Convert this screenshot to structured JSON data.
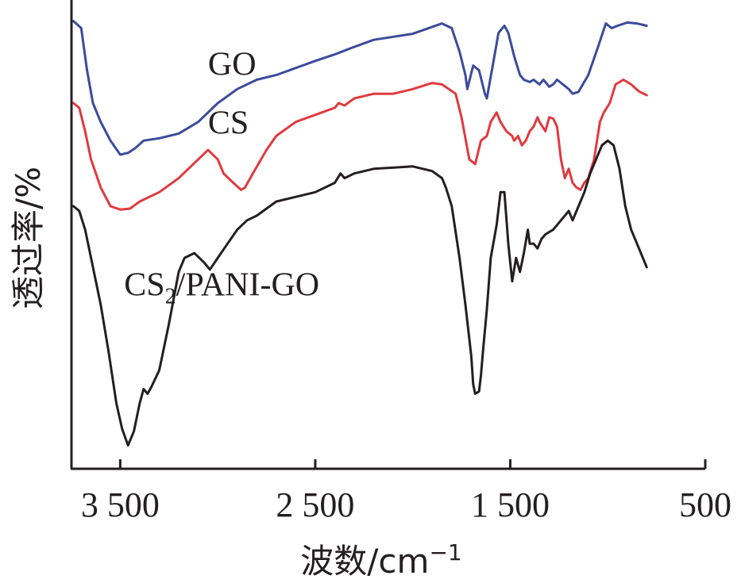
{
  "chart_data": {
    "type": "line",
    "xlabel": "波数/cm",
    "xlabel_sup": "−1",
    "ylabel": "透过率/%",
    "xlim": [
      3750,
      500
    ],
    "x_reversed": true,
    "ylim": [
      0,
      100
    ],
    "y_tick_labels_shown": false,
    "grid": false,
    "x_ticks": [
      {
        "value": 3500,
        "label": "3 500"
      },
      {
        "value": 2500,
        "label": "2 500"
      },
      {
        "value": 1500,
        "label": "1 500"
      },
      {
        "value": 500,
        "label": "500"
      }
    ],
    "series": [
      {
        "name": "GO",
        "color": "#3a4b9c",
        "label_parts": {
          "main": "GO",
          "sub": "",
          "tail": ""
        },
        "label_at": [
          3050,
          84
        ],
        "points": [
          [
            3740,
            95.5
          ],
          [
            3700,
            94
          ],
          [
            3670,
            85
          ],
          [
            3640,
            78
          ],
          [
            3600,
            74
          ],
          [
            3550,
            70
          ],
          [
            3500,
            67
          ],
          [
            3460,
            67.4
          ],
          [
            3420,
            68.5
          ],
          [
            3380,
            70
          ],
          [
            3300,
            70.5
          ],
          [
            3200,
            71.5
          ],
          [
            3100,
            74
          ],
          [
            3000,
            78
          ],
          [
            2900,
            81
          ],
          [
            2800,
            83
          ],
          [
            2700,
            84
          ],
          [
            2600,
            85.5
          ],
          [
            2500,
            87
          ],
          [
            2400,
            88.4
          ],
          [
            2350,
            89.2
          ],
          [
            2300,
            90
          ],
          [
            2200,
            91.5
          ],
          [
            2000,
            92.8
          ],
          [
            1850,
            95
          ],
          [
            1800,
            94
          ],
          [
            1760,
            89
          ],
          [
            1730,
            84
          ],
          [
            1720,
            81
          ],
          [
            1690,
            86
          ],
          [
            1660,
            85
          ],
          [
            1630,
            80
          ],
          [
            1620,
            79
          ],
          [
            1590,
            86
          ],
          [
            1560,
            93
          ],
          [
            1530,
            94.5
          ],
          [
            1510,
            93
          ],
          [
            1480,
            88
          ],
          [
            1450,
            84
          ],
          [
            1430,
            83
          ],
          [
            1400,
            82.5
          ],
          [
            1380,
            83
          ],
          [
            1350,
            82
          ],
          [
            1330,
            83
          ],
          [
            1300,
            81.5
          ],
          [
            1280,
            82
          ],
          [
            1260,
            83
          ],
          [
            1230,
            82
          ],
          [
            1200,
            81
          ],
          [
            1180,
            80
          ],
          [
            1150,
            80.4
          ],
          [
            1100,
            84
          ],
          [
            1050,
            90
          ],
          [
            1010,
            95
          ],
          [
            980,
            94
          ],
          [
            950,
            94.5
          ],
          [
            900,
            95.2
          ],
          [
            850,
            95
          ],
          [
            800,
            94.5
          ]
        ]
      },
      {
        "name": "CS",
        "color": "#e03a3e",
        "label_parts": {
          "main": "CS",
          "sub": "",
          "tail": ""
        },
        "label_at": [
          3050,
          71.5
        ],
        "points": [
          [
            3740,
            78
          ],
          [
            3710,
            77
          ],
          [
            3680,
            72
          ],
          [
            3650,
            66
          ],
          [
            3600,
            60
          ],
          [
            3550,
            56
          ],
          [
            3500,
            55.3
          ],
          [
            3450,
            55.5
          ],
          [
            3400,
            57
          ],
          [
            3300,
            59
          ],
          [
            3200,
            62
          ],
          [
            3100,
            66
          ],
          [
            3050,
            68
          ],
          [
            3000,
            66
          ],
          [
            2970,
            63
          ],
          [
            2920,
            61
          ],
          [
            2880,
            59.5
          ],
          [
            2860,
            60
          ],
          [
            2820,
            63
          ],
          [
            2750,
            68
          ],
          [
            2700,
            71
          ],
          [
            2600,
            74
          ],
          [
            2500,
            75.5
          ],
          [
            2400,
            77
          ],
          [
            2380,
            78
          ],
          [
            2350,
            77.5
          ],
          [
            2300,
            79
          ],
          [
            2200,
            80
          ],
          [
            2100,
            80
          ],
          [
            2000,
            81
          ],
          [
            1900,
            82.3
          ],
          [
            1850,
            82
          ],
          [
            1780,
            80
          ],
          [
            1750,
            75
          ],
          [
            1710,
            66
          ],
          [
            1680,
            65
          ],
          [
            1650,
            70
          ],
          [
            1620,
            71
          ],
          [
            1600,
            74
          ],
          [
            1570,
            76
          ],
          [
            1550,
            74
          ],
          [
            1520,
            72
          ],
          [
            1490,
            71
          ],
          [
            1480,
            70
          ],
          [
            1460,
            71
          ],
          [
            1440,
            69
          ],
          [
            1420,
            70
          ],
          [
            1400,
            72
          ],
          [
            1380,
            73
          ],
          [
            1360,
            75
          ],
          [
            1350,
            74
          ],
          [
            1320,
            72
          ],
          [
            1300,
            75
          ],
          [
            1280,
            74.7
          ],
          [
            1260,
            73
          ],
          [
            1240,
            66
          ],
          [
            1220,
            62
          ],
          [
            1200,
            64
          ],
          [
            1180,
            61
          ],
          [
            1160,
            60
          ],
          [
            1140,
            59.5
          ],
          [
            1120,
            61
          ],
          [
            1100,
            62
          ],
          [
            1070,
            66
          ],
          [
            1040,
            74
          ],
          [
            1020,
            76
          ],
          [
            990,
            78
          ],
          [
            960,
            82
          ],
          [
            920,
            83
          ],
          [
            880,
            82
          ],
          [
            840,
            80.5
          ],
          [
            800,
            79.7
          ]
        ]
      },
      {
        "name": "CS2/PANI-GO",
        "color": "#231f20",
        "label_parts": {
          "main": "CS",
          "sub": "2",
          "tail": "/PANI-GO"
        },
        "label_at": [
          3480,
          37
        ],
        "points": [
          [
            3740,
            56
          ],
          [
            3710,
            55
          ],
          [
            3680,
            51
          ],
          [
            3650,
            45
          ],
          [
            3600,
            35
          ],
          [
            3560,
            25
          ],
          [
            3520,
            14
          ],
          [
            3490,
            8.5
          ],
          [
            3460,
            5
          ],
          [
            3430,
            8
          ],
          [
            3400,
            14
          ],
          [
            3380,
            17
          ],
          [
            3360,
            16
          ],
          [
            3340,
            17.5
          ],
          [
            3300,
            21
          ],
          [
            3250,
            31
          ],
          [
            3200,
            42
          ],
          [
            3170,
            45
          ],
          [
            3120,
            46
          ],
          [
            3070,
            44
          ],
          [
            3040,
            42.5
          ],
          [
            3000,
            45
          ],
          [
            2950,
            48
          ],
          [
            2900,
            51
          ],
          [
            2850,
            53
          ],
          [
            2800,
            54
          ],
          [
            2700,
            57
          ],
          [
            2600,
            58
          ],
          [
            2500,
            59
          ],
          [
            2400,
            61
          ],
          [
            2370,
            63
          ],
          [
            2350,
            62
          ],
          [
            2300,
            63
          ],
          [
            2200,
            64
          ],
          [
            2000,
            64.5
          ],
          [
            1900,
            63.5
          ],
          [
            1850,
            62
          ],
          [
            1830,
            60
          ],
          [
            1800,
            56
          ],
          [
            1760,
            45
          ],
          [
            1730,
            35
          ],
          [
            1700,
            24
          ],
          [
            1690,
            18
          ],
          [
            1680,
            16
          ],
          [
            1660,
            16.5
          ],
          [
            1650,
            20
          ],
          [
            1640,
            25
          ],
          [
            1620,
            34
          ],
          [
            1600,
            45
          ],
          [
            1570,
            52
          ],
          [
            1550,
            59
          ],
          [
            1530,
            59
          ],
          [
            1510,
            48
          ],
          [
            1490,
            40
          ],
          [
            1470,
            45
          ],
          [
            1450,
            42
          ],
          [
            1430,
            46
          ],
          [
            1410,
            51
          ],
          [
            1400,
            48
          ],
          [
            1380,
            48
          ],
          [
            1360,
            47
          ],
          [
            1340,
            49
          ],
          [
            1320,
            50
          ],
          [
            1300,
            50.5
          ],
          [
            1280,
            51
          ],
          [
            1260,
            52
          ],
          [
            1240,
            53
          ],
          [
            1220,
            54
          ],
          [
            1200,
            55
          ],
          [
            1180,
            53
          ],
          [
            1150,
            56
          ],
          [
            1120,
            59
          ],
          [
            1090,
            63
          ],
          [
            1060,
            66
          ],
          [
            1030,
            69
          ],
          [
            1000,
            70
          ],
          [
            970,
            69
          ],
          [
            940,
            64
          ],
          [
            910,
            56
          ],
          [
            880,
            51
          ],
          [
            850,
            48
          ],
          [
            820,
            45
          ],
          [
            800,
            43
          ]
        ]
      }
    ]
  }
}
